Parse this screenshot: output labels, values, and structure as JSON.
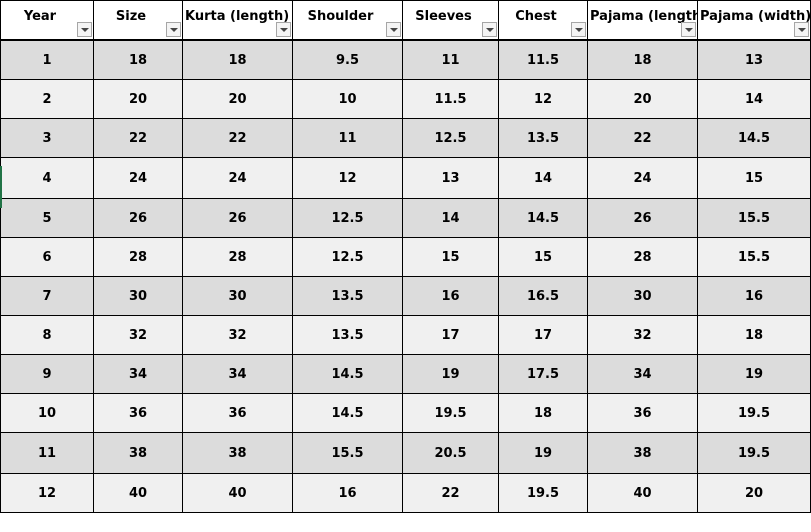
{
  "headers": [
    {
      "label": "Year"
    },
    {
      "label": "Size"
    },
    {
      "label": "Kurta (length)"
    },
    {
      "label": "Shoulder"
    },
    {
      "label": "Sleeves"
    },
    {
      "label": "Chest"
    },
    {
      "label": "Pajama (length)"
    },
    {
      "label": "Pajama (width)"
    }
  ],
  "rows": [
    [
      "1",
      "18",
      "18",
      "9.5",
      "11",
      "11.5",
      "18",
      "13"
    ],
    [
      "2",
      "20",
      "20",
      "10",
      "11.5",
      "12",
      "20",
      "14"
    ],
    [
      "3",
      "22",
      "22",
      "11",
      "12.5",
      "13.5",
      "22",
      "14.5"
    ],
    [
      "4",
      "24",
      "24",
      "12",
      "13",
      "14",
      "24",
      "15"
    ],
    [
      "5",
      "26",
      "26",
      "12.5",
      "14",
      "14.5",
      "26",
      "15.5"
    ],
    [
      "6",
      "28",
      "28",
      "12.5",
      "15",
      "15",
      "28",
      "15.5"
    ],
    [
      "7",
      "30",
      "30",
      "13.5",
      "16",
      "16.5",
      "30",
      "16"
    ],
    [
      "8",
      "32",
      "32",
      "13.5",
      "17",
      "17",
      "32",
      "18"
    ],
    [
      "9",
      "34",
      "34",
      "14.5",
      "19",
      "17.5",
      "34",
      "19"
    ],
    [
      "10",
      "36",
      "36",
      "14.5",
      "19.5",
      "18",
      "36",
      "19.5"
    ],
    [
      "11",
      "38",
      "38",
      "15.5",
      "20.5",
      "19",
      "38",
      "19.5"
    ],
    [
      "12",
      "40",
      "40",
      "16",
      "22",
      "19.5",
      "40",
      "20"
    ]
  ],
  "colors": {
    "band_dark": "#dcdcdc",
    "band_light": "#f0f0f0",
    "header_bg": "#ffffff",
    "grid": "#000000",
    "selection_accent": "#217346"
  },
  "icons": {
    "filter": "filter-dropdown-icon"
  }
}
